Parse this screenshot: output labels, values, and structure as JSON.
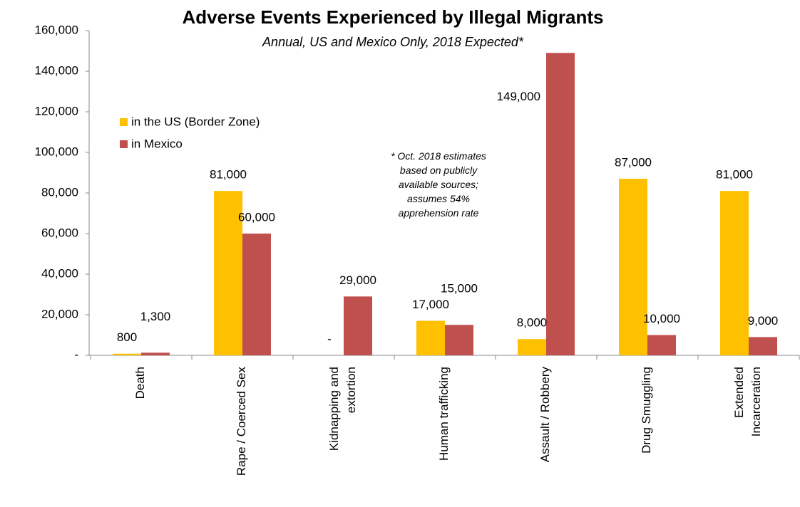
{
  "chart_data": {
    "type": "bar",
    "title": "Adverse Events Experienced by Illegal Migrants",
    "subtitle": "Annual, US and Mexico Only, 2018 Expected*",
    "note": "* Oct. 2018 estimates\nbased on  publicly\navailable sources;\nassumes 54%\napprehension rate",
    "categories": [
      "Death",
      "Rape / Coerced Sex",
      "Kidnapping and\nextortion",
      "Human trafficking",
      "Assault / Robbery",
      "Drug Smuggling",
      "Extended\nIncarceration"
    ],
    "series": [
      {
        "name": "in the US (Border Zone)",
        "color": "#ffc000",
        "values": [
          800,
          81000,
          0,
          17000,
          8000,
          87000,
          81000
        ],
        "value_labels": [
          "800",
          "81,000",
          "-",
          "17,000",
          "8,000",
          "87,000",
          "81,000"
        ]
      },
      {
        "name": "in Mexico",
        "color": "#c0504d",
        "values": [
          1300,
          60000,
          29000,
          15000,
          149000,
          10000,
          9000
        ],
        "value_labels": [
          "1,300",
          "60,000",
          "29,000",
          "15,000",
          "149,000",
          "10,000",
          "9,000"
        ]
      }
    ],
    "ylim": [
      0,
      160000
    ],
    "yticks": [
      {
        "value": 0,
        "label": "-"
      },
      {
        "value": 20000,
        "label": "20,000"
      },
      {
        "value": 40000,
        "label": "40,000"
      },
      {
        "value": 60000,
        "label": "60,000"
      },
      {
        "value": 80000,
        "label": "80,000"
      },
      {
        "value": 100000,
        "label": "100,000"
      },
      {
        "value": 120000,
        "label": "120,000"
      },
      {
        "value": 140000,
        "label": "140,000"
      },
      {
        "value": 160000,
        "label": "160,000"
      }
    ],
    "grid": false,
    "legend": "upper left"
  }
}
